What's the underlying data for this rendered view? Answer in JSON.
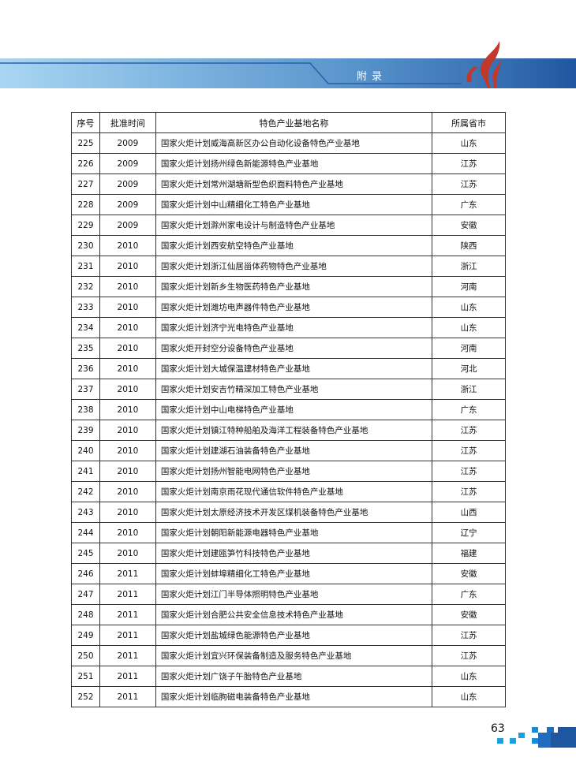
{
  "header": {
    "section_title": "附录",
    "accent_color": "#1f56a0",
    "logo_color": "#c0392b"
  },
  "table": {
    "columns": [
      "序号",
      "批准时间",
      "特色产业基地名称",
      "所属省市"
    ],
    "rows": [
      [
        "225",
        "2009",
        "国家火炬计划威海高新区办公自动化设备特色产业基地",
        "山东"
      ],
      [
        "226",
        "2009",
        "国家火炬计划扬州绿色新能源特色产业基地",
        "江苏"
      ],
      [
        "227",
        "2009",
        "国家火炬计划常州湖塘新型色织面料特色产业基地",
        "江苏"
      ],
      [
        "228",
        "2009",
        "国家火炬计划中山精细化工特色产业基地",
        "广东"
      ],
      [
        "229",
        "2009",
        "国家火炬计划滁州家电设计与制造特色产业基地",
        "安徽"
      ],
      [
        "230",
        "2010",
        "国家火炬计划西安航空特色产业基地",
        "陕西"
      ],
      [
        "231",
        "2010",
        "国家火炬计划浙江仙居甾体药物特色产业基地",
        "浙江"
      ],
      [
        "232",
        "2010",
        "国家火炬计划新乡生物医药特色产业基地",
        "河南"
      ],
      [
        "233",
        "2010",
        "国家火炬计划潍坊电声器件特色产业基地",
        "山东"
      ],
      [
        "234",
        "2010",
        "国家火炬计划济宁光电特色产业基地",
        "山东"
      ],
      [
        "235",
        "2010",
        "国家火炬开封空分设备特色产业基地",
        "河南"
      ],
      [
        "236",
        "2010",
        "国家火炬计划大城保温建材特色产业基地",
        "河北"
      ],
      [
        "237",
        "2010",
        "国家火炬计划安吉竹精深加工特色产业基地",
        "浙江"
      ],
      [
        "238",
        "2010",
        "国家火炬计划中山电梯特色产业基地",
        "广东"
      ],
      [
        "239",
        "2010",
        "国家火炬计划镇江特种船舶及海洋工程装备特色产业基地",
        "江苏"
      ],
      [
        "240",
        "2010",
        "国家火炬计划建湖石油装备特色产业基地",
        "江苏"
      ],
      [
        "241",
        "2010",
        "国家火炬计划扬州智能电网特色产业基地",
        "江苏"
      ],
      [
        "242",
        "2010",
        "国家火炬计划南京雨花现代通信软件特色产业基地",
        "江苏"
      ],
      [
        "243",
        "2010",
        "国家火炬计划太原经济技术开发区煤机装备特色产业基地",
        "山西"
      ],
      [
        "244",
        "2010",
        "国家火炬计划朝阳新能源电器特色产业基地",
        "辽宁"
      ],
      [
        "245",
        "2010",
        "国家火炬计划建瓯笋竹科技特色产业基地",
        "福建"
      ],
      [
        "246",
        "2011",
        "国家火炬计划蚌埠精细化工特色产业基地",
        "安徽"
      ],
      [
        "247",
        "2011",
        "国家火炬计划江门半导体照明特色产业基地",
        "广东"
      ],
      [
        "248",
        "2011",
        "国家火炬计划合肥公共安全信息技术特色产业基地",
        "安徽"
      ],
      [
        "249",
        "2011",
        "国家火炬计划盐城绿色能源特色产业基地",
        "江苏"
      ],
      [
        "250",
        "2011",
        "国家火炬计划宜兴环保装备制造及服务特色产业基地",
        "江苏"
      ],
      [
        "251",
        "2011",
        "国家火炬计划广饶子午胎特色产业基地",
        "山东"
      ],
      [
        "252",
        "2011",
        "国家火炬计划临朐磁电装备特色产业基地",
        "山东"
      ]
    ]
  },
  "footer": {
    "page_number": "63"
  }
}
